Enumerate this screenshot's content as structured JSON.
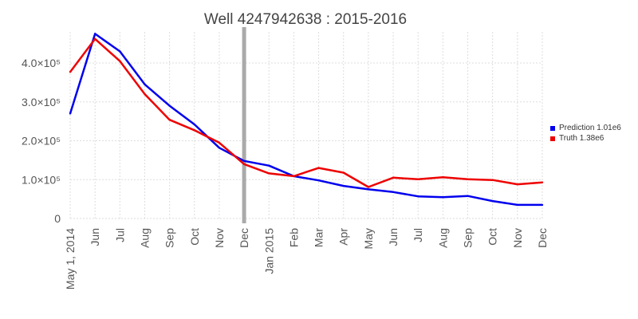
{
  "chart_data": {
    "type": "line",
    "title": "Well 4247942638 : 2015-2016",
    "x": [
      "May 1, 2014",
      "Jun",
      "Jul",
      "Aug",
      "Sep",
      "Oct",
      "Nov",
      "Dec",
      "Jan 2015",
      "Feb",
      "Mar",
      "Apr",
      "May",
      "Jun",
      "Jul",
      "Aug",
      "Sep",
      "Oct",
      "Nov",
      "Dec"
    ],
    "ylim": [
      0,
      480000
    ],
    "yticks": [
      {
        "value": 0,
        "label": "0"
      },
      {
        "value": 100000,
        "label": "1.0×10⁵"
      },
      {
        "value": 200000,
        "label": "2.0×10⁵"
      },
      {
        "value": 300000,
        "label": "3.0×10⁵"
      },
      {
        "value": 400000,
        "label": "4.0×10⁵"
      }
    ],
    "grid": true,
    "legend_position": "right",
    "marker_x": "Dec",
    "marker_color": "#aaaaaa",
    "series": [
      {
        "name": "Prediction 1.01e6",
        "color": "#0000ee",
        "values": [
          270000,
          475000,
          430000,
          345000,
          290000,
          242000,
          182000,
          148000,
          136000,
          109000,
          98000,
          84000,
          75000,
          68000,
          57000,
          55000,
          58000,
          45000,
          35000,
          35000
        ]
      },
      {
        "name": "Truth 1.38e6",
        "color": "#ee0000",
        "values": [
          377000,
          462000,
          405000,
          320000,
          254000,
          227000,
          195000,
          140000,
          116000,
          109000,
          130000,
          118000,
          81000,
          105000,
          101000,
          106000,
          101000,
          99000,
          88000,
          93000
        ]
      }
    ]
  }
}
